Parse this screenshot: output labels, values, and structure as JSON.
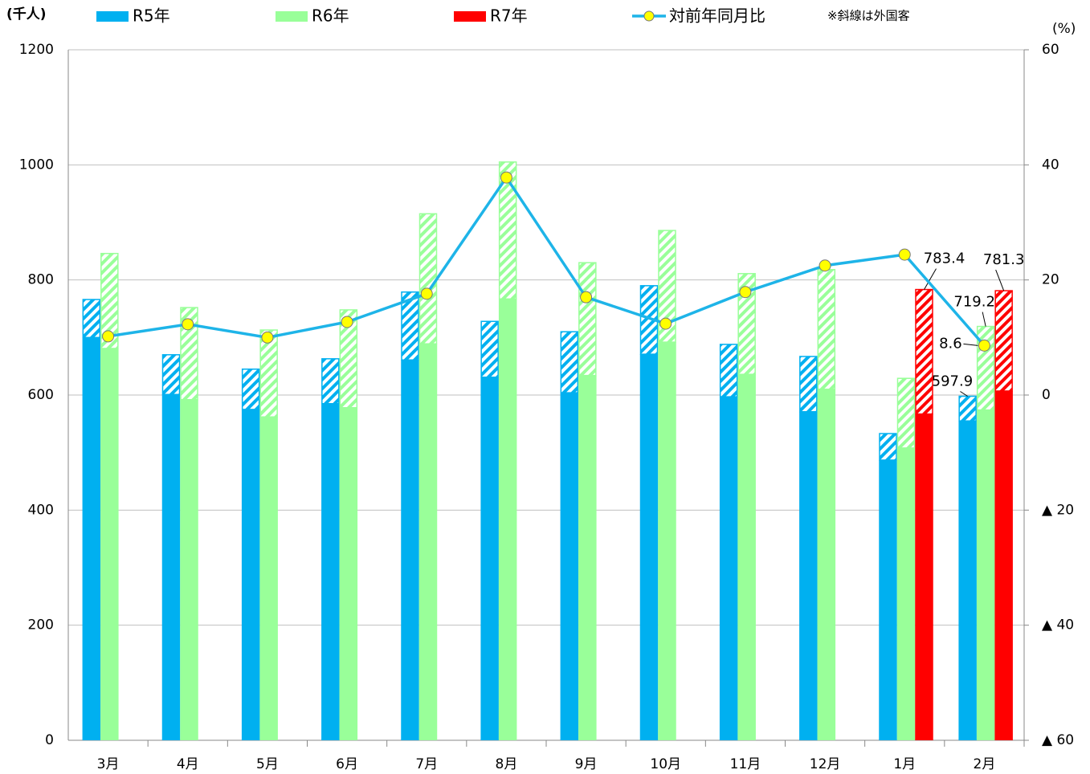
{
  "chart_data": {
    "type": "bar",
    "y_label": "(千人)",
    "y2_label": "(%)",
    "note": "※斜線は外国客",
    "categories": [
      "3月",
      "4月",
      "5月",
      "6月",
      "7月",
      "8月",
      "9月",
      "10月",
      "11月",
      "12月",
      "1月",
      "2月"
    ],
    "series": [
      {
        "name": "R5年",
        "color": "#00b0f0",
        "values": [
          700,
          601,
          575,
          585,
          661,
          631,
          604,
          671,
          597,
          571,
          487,
          555
        ],
        "foreign": [
          66,
          69,
          70,
          78,
          118,
          97,
          106,
          119,
          91,
          96,
          46,
          42.9
        ],
        "total_labels": [
          null,
          null,
          null,
          null,
          null,
          null,
          null,
          null,
          null,
          null,
          null,
          "597.9"
        ]
      },
      {
        "name": "R6年",
        "color": "#99ff99",
        "values": [
          681,
          592,
          562,
          578,
          689,
          767,
          634,
          692,
          636,
          610,
          508,
          574
        ],
        "foreign": [
          165,
          160,
          151,
          170,
          226,
          238,
          196,
          194,
          175,
          208,
          121,
          145.2
        ],
        "total_labels": [
          null,
          null,
          null,
          null,
          null,
          null,
          null,
          null,
          null,
          null,
          null,
          "719.2"
        ]
      },
      {
        "name": "R7年",
        "color": "#ff0000",
        "values": [
          null,
          null,
          null,
          null,
          null,
          null,
          null,
          null,
          null,
          null,
          567,
          607
        ],
        "foreign": [
          null,
          null,
          null,
          null,
          null,
          null,
          null,
          null,
          null,
          null,
          216.4,
          174.3
        ],
        "total_labels": [
          null,
          null,
          null,
          null,
          null,
          null,
          null,
          null,
          null,
          null,
          "783.4",
          "781.3"
        ]
      },
      {
        "name": "対前年同月比",
        "type": "line",
        "axis": "y2",
        "color": "#1eb4e8",
        "marker_color": "#ffff00",
        "values": [
          10.2,
          12.3,
          10.0,
          12.7,
          17.6,
          37.8,
          17.0,
          12.4,
          17.9,
          22.5,
          24.4,
          8.6
        ],
        "value_labels": [
          null,
          null,
          null,
          null,
          null,
          null,
          null,
          null,
          null,
          null,
          null,
          "8.6"
        ]
      }
    ],
    "ylim": [
      0,
      1200
    ],
    "yticks": [
      0,
      200,
      400,
      600,
      800,
      1000,
      1200
    ],
    "y2lim": [
      -60,
      60
    ],
    "y2ticks": [
      {
        "value": -60,
        "label": "▲ 60"
      },
      {
        "value": -40,
        "label": "▲ 40"
      },
      {
        "value": -20,
        "label": "▲ 20"
      },
      0,
      20,
      40,
      60
    ],
    "grid": true
  }
}
